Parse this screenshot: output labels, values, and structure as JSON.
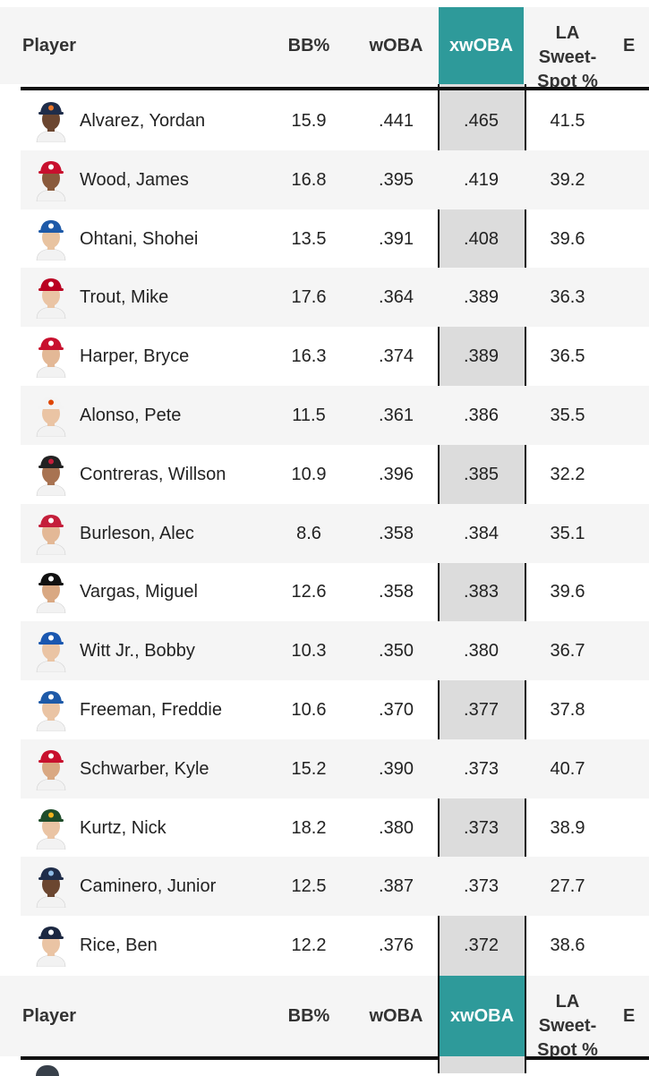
{
  "header": {
    "player": "Player",
    "bb": "BB%",
    "woba": "wOBA",
    "xwoba": "xwOBA",
    "la_line1": "LA Sweet-",
    "la_line2": "Spot %",
    "extra": "E"
  },
  "rows": [
    {
      "name": "Alvarez, Yordan",
      "bb": "15.9",
      "woba": ".441",
      "xwoba": ".465",
      "la": "41.5",
      "cap": "#1f2d4a",
      "logo": "#e8762b",
      "skin": "#6b4630"
    },
    {
      "name": "Wood, James",
      "bb": "16.8",
      "woba": ".395",
      "xwoba": ".419",
      "la": "39.2",
      "cap": "#c8102e",
      "logo": "#ffffff",
      "skin": "#8a5a3c"
    },
    {
      "name": "Ohtani, Shohei",
      "bb": "13.5",
      "woba": ".391",
      "xwoba": ".408",
      "la": "39.6",
      "cap": "#1e5aa8",
      "logo": "#ffffff",
      "skin": "#e8c3a0"
    },
    {
      "name": "Trout, Mike",
      "bb": "17.6",
      "woba": ".364",
      "xwoba": ".389",
      "la": "36.3",
      "cap": "#ba0021",
      "logo": "#ffffff",
      "skin": "#eac4a4"
    },
    {
      "name": "Harper, Bryce",
      "bb": "16.3",
      "woba": ".374",
      "xwoba": ".389",
      "la": "36.5",
      "cap": "#c8102e",
      "logo": "#ffffff",
      "skin": "#e3b896"
    },
    {
      "name": "Alonso, Pete",
      "bb": "11.5",
      "woba": ".361",
      "xwoba": ".386",
      "la": "35.5",
      "cap": "#f4f4f4",
      "logo": "#df4601",
      "skin": "#eac4a4"
    },
    {
      "name": "Contreras, Willson",
      "bb": "10.9",
      "woba": ".396",
      "xwoba": ".385",
      "la": "32.2",
      "cap": "#222222",
      "logo": "#c41e3a",
      "skin": "#a87352"
    },
    {
      "name": "Burleson, Alec",
      "bb": "8.6",
      "woba": ".358",
      "xwoba": ".384",
      "la": "35.1",
      "cap": "#c41e3a",
      "logo": "#ffffff",
      "skin": "#e3b896"
    },
    {
      "name": "Vargas, Miguel",
      "bb": "12.6",
      "woba": ".358",
      "xwoba": ".383",
      "la": "39.6",
      "cap": "#111111",
      "logo": "#ffffff",
      "skin": "#d9a882"
    },
    {
      "name": "Witt Jr., Bobby",
      "bb": "10.3",
      "woba": ".350",
      "xwoba": ".380",
      "la": "36.7",
      "cap": "#1a57b0",
      "logo": "#ffffff",
      "skin": "#eac4a4"
    },
    {
      "name": "Freeman, Freddie",
      "bb": "10.6",
      "woba": ".370",
      "xwoba": ".377",
      "la": "37.8",
      "cap": "#1e5aa8",
      "logo": "#ffffff",
      "skin": "#eac4a4"
    },
    {
      "name": "Schwarber, Kyle",
      "bb": "15.2",
      "woba": ".390",
      "xwoba": ".373",
      "la": "40.7",
      "cap": "#c8102e",
      "logo": "#ffffff",
      "skin": "#d9a882"
    },
    {
      "name": "Kurtz, Nick",
      "bb": "18.2",
      "woba": ".380",
      "xwoba": ".373",
      "la": "38.9",
      "cap": "#1f4d2b",
      "logo": "#efb21e",
      "skin": "#eac4a4"
    },
    {
      "name": "Caminero, Junior",
      "bb": "12.5",
      "woba": ".387",
      "xwoba": ".373",
      "la": "27.7",
      "cap": "#1f2d4a",
      "logo": "#8fbce6",
      "skin": "#6b4630"
    },
    {
      "name": "Rice, Ben",
      "bb": "12.2",
      "woba": ".376",
      "xwoba": ".372",
      "la": "38.6",
      "cap": "#1c2841",
      "logo": "#ffffff",
      "skin": "#eac4a4"
    }
  ]
}
